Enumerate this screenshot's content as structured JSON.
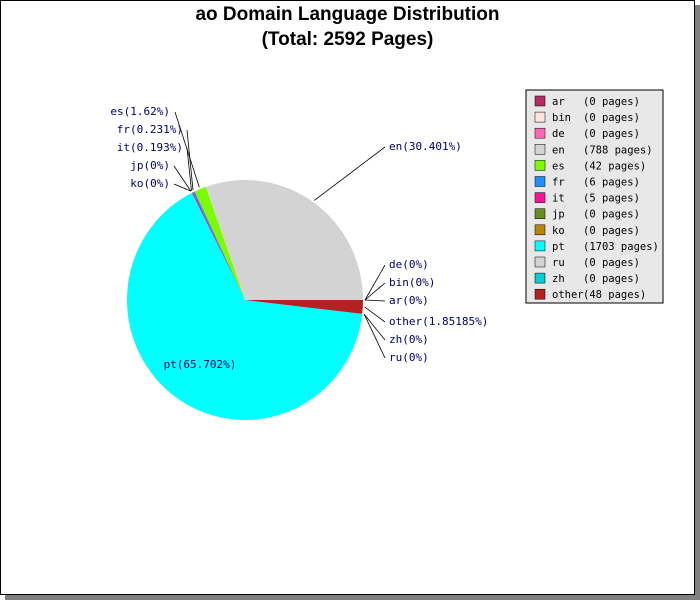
{
  "chart_data": {
    "type": "pie",
    "title": "ao Domain Language Distribution",
    "subtitle": "(Total: 2592 Pages)",
    "legend_position": "right",
    "slices": [
      {
        "name": "ar",
        "pages": 0,
        "percent": 0,
        "label": "ar(0%)",
        "legend": "(0 pages)",
        "color": "#b03060"
      },
      {
        "name": "bin",
        "pages": 0,
        "percent": 0,
        "label": "bin(0%)",
        "legend": "(0 pages)",
        "color": "#ffe4e1"
      },
      {
        "name": "de",
        "pages": 0,
        "percent": 0,
        "label": "de(0%)",
        "legend": "(0 pages)",
        "color": "#ff69b4"
      },
      {
        "name": "en",
        "pages": 788,
        "percent": 30.401,
        "label": "en(30.401%)",
        "legend": "(788 pages)",
        "color": "#d3d3d3"
      },
      {
        "name": "es",
        "pages": 42,
        "percent": 1.62,
        "label": "es(1.62%)",
        "legend": "(42 pages)",
        "color": "#7cfc00"
      },
      {
        "name": "fr",
        "pages": 6,
        "percent": 0.231,
        "label": "fr(0.231%)",
        "legend": "(6 pages)",
        "color": "#1e90ff"
      },
      {
        "name": "it",
        "pages": 5,
        "percent": 0.193,
        "label": "it(0.193%)",
        "legend": "(5 pages)",
        "color": "#ff1493"
      },
      {
        "name": "jp",
        "pages": 0,
        "percent": 0,
        "label": "jp(0%)",
        "legend": "(0 pages)",
        "color": "#6b8e23"
      },
      {
        "name": "ko",
        "pages": 0,
        "percent": 0,
        "label": "ko(0%)",
        "legend": "(0 pages)",
        "color": "#b8860b"
      },
      {
        "name": "pt",
        "pages": 1703,
        "percent": 65.702,
        "label": "pt(65.702%)",
        "legend": "(1703 pages)",
        "color": "#00ffff"
      },
      {
        "name": "ru",
        "pages": 0,
        "percent": 0,
        "label": "ru(0%)",
        "legend": "(0 pages)",
        "color": "#d3d3d3"
      },
      {
        "name": "zh",
        "pages": 0,
        "percent": 0,
        "label": "zh(0%)",
        "legend": "(0 pages)",
        "color": "#00ced1"
      },
      {
        "name": "other",
        "pages": 48,
        "percent": 1.85185,
        "label": "other(1.85185%)",
        "legend": "(48 pages)",
        "color": "#b22222"
      }
    ]
  }
}
